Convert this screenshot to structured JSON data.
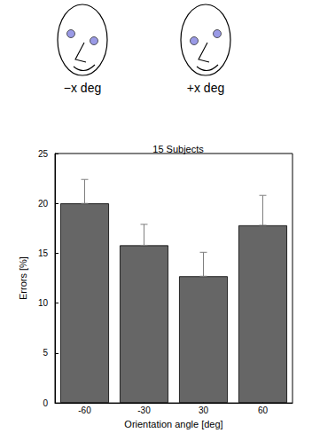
{
  "chart_data": {
    "type": "bar",
    "title": "15 Subjects",
    "x_label": "Orientation angle [deg]",
    "y_label": "Errors [%]",
    "categories": [
      "-60",
      "-30",
      "30",
      "60"
    ],
    "values": [
      20.0,
      15.8,
      12.7,
      17.8
    ],
    "errors": [
      2.4,
      2.1,
      2.4,
      3.0
    ],
    "color": "#666666",
    "ylim": [
      0,
      25
    ],
    "yticks": [
      0,
      5,
      10,
      15,
      20,
      25
    ],
    "grid": false
  },
  "illustrations": [
    {
      "label": "−x deg"
    },
    {
      "label": "+x deg"
    }
  ]
}
